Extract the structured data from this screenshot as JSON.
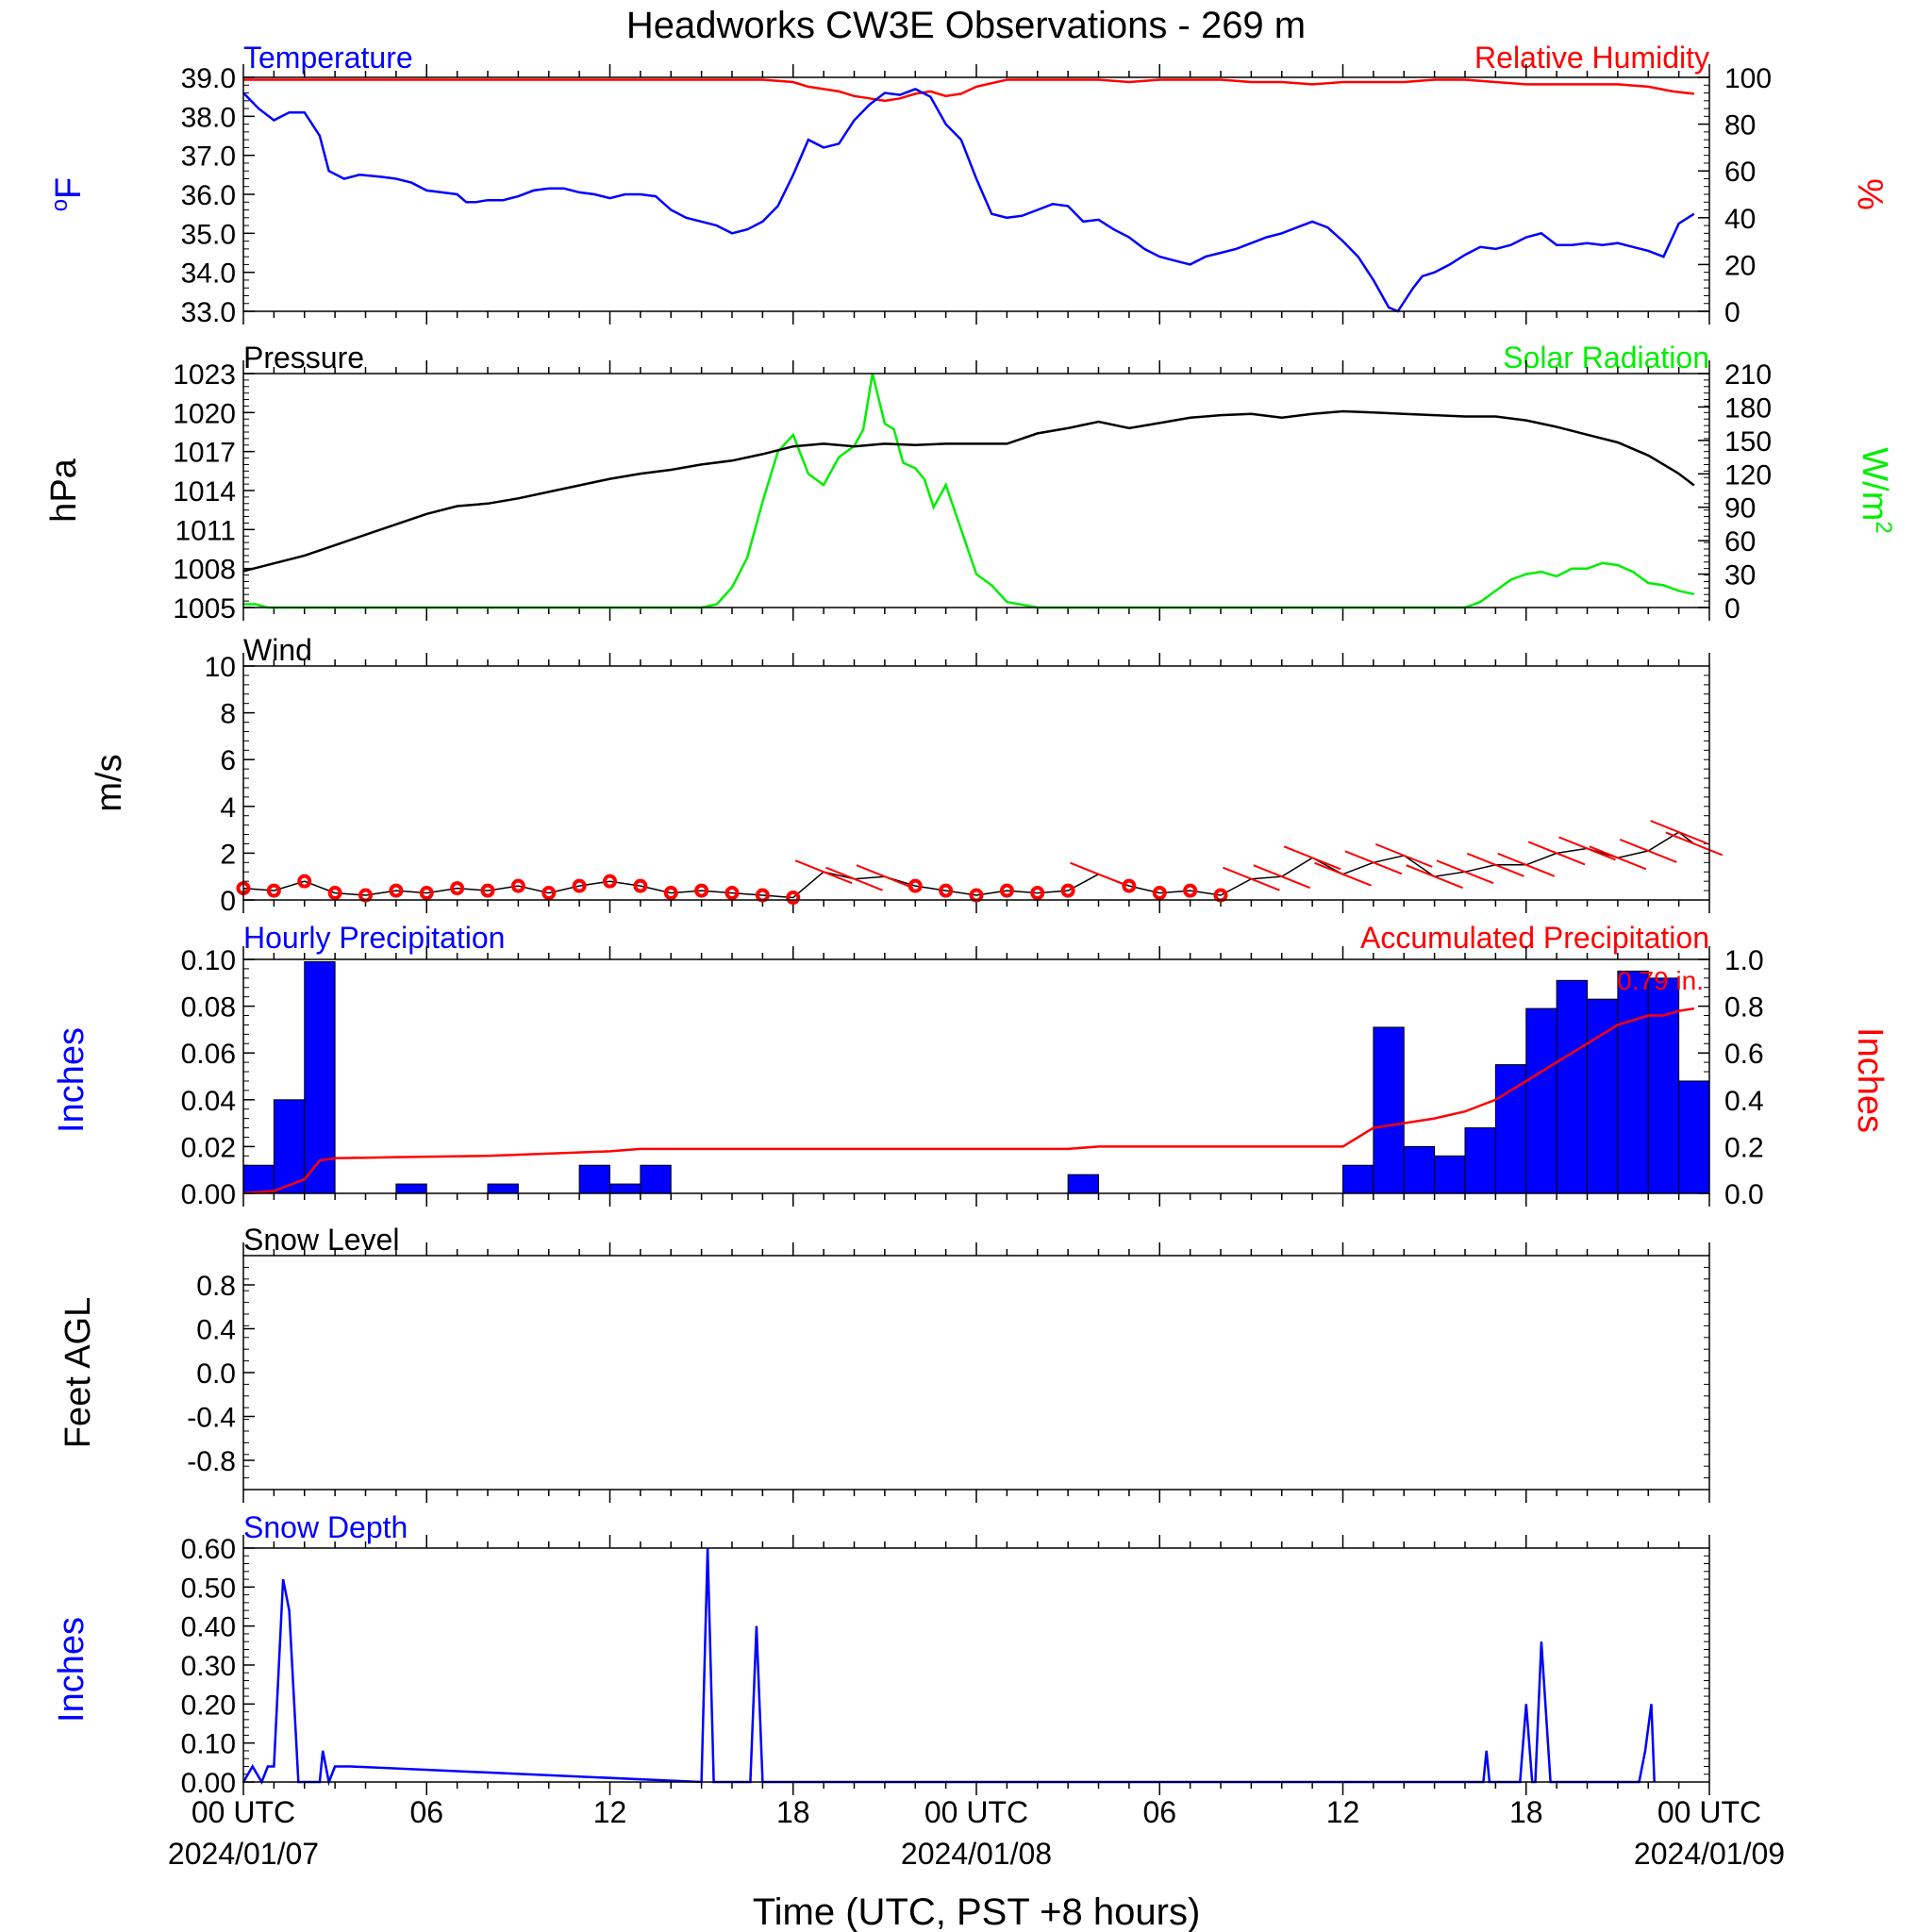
{
  "title": "Headworks CW3E Observations - 269 m",
  "xaxis": {
    "label": "Time (UTC, PST +8 hours)",
    "tick_hours": [
      0,
      6,
      12,
      18,
      24,
      30,
      36,
      42,
      48
    ],
    "tick_labels": [
      "00 UTC",
      "06",
      "12",
      "18",
      "00 UTC",
      "06",
      "12",
      "18",
      "00 UTC"
    ],
    "date_labels": [
      "2024/01/07",
      "2024/01/08",
      "2024/01/09"
    ],
    "range_hours": [
      0,
      48
    ]
  },
  "panels": {
    "temperature": {
      "title": "Temperature",
      "title_right": "Relative Humidity",
      "ylabel": "oF",
      "ylabel_right": "%",
      "yticks": [
        "33.0",
        "34.0",
        "35.0",
        "36.0",
        "37.0",
        "38.0",
        "39.0"
      ],
      "yticks_right": [
        "0",
        "20",
        "40",
        "60",
        "80",
        "100"
      ]
    },
    "pressure": {
      "title": "Pressure",
      "title_right": "Solar Radiation",
      "ylabel": "hPa",
      "ylabel_right": "W/m2",
      "yticks": [
        "1005",
        "1008",
        "1011",
        "1014",
        "1017",
        "1020",
        "1023"
      ],
      "yticks_right": [
        "0",
        "30",
        "60",
        "90",
        "120",
        "150",
        "180",
        "210"
      ]
    },
    "wind": {
      "title": "Wind",
      "ylabel": "m/s",
      "yticks": [
        "0",
        "2",
        "4",
        "6",
        "8",
        "10"
      ]
    },
    "precip": {
      "title": "Hourly Precipitation",
      "title_right": "Accumulated Precipitation",
      "ylabel": "Inches",
      "ylabel_right": "Inches",
      "yticks": [
        "0.00",
        "0.02",
        "0.04",
        "0.06",
        "0.08",
        "0.10"
      ],
      "yticks_right": [
        "0.0",
        "0.2",
        "0.4",
        "0.6",
        "0.8",
        "1.0"
      ],
      "annotation": "0.79 in."
    },
    "snow_level": {
      "title": "Snow Level",
      "ylabel": "Feet AGL",
      "yticks": [
        "-0.8",
        "-0.4",
        "0.0",
        "0.4",
        "0.8"
      ]
    },
    "snow_depth": {
      "title": "Snow Depth",
      "ylabel": "Inches",
      "yticks": [
        "0.00",
        "0.10",
        "0.20",
        "0.30",
        "0.40",
        "0.50",
        "0.60"
      ]
    }
  },
  "colors": {
    "temperature": "#0000ff",
    "humidity": "#ff0000",
    "pressure": "#000000",
    "solar": "#00ee00",
    "wind": "#000000",
    "wind_barb": "#ff0000",
    "hourly_precip": "#0000ff",
    "accum_precip": "#ff0000",
    "snow_depth": "#0000ff"
  },
  "chart_data": [
    {
      "type": "line",
      "panel": "temperature",
      "ylim": [
        33,
        39
      ],
      "x_units": "hours since 2024/01/07 00 UTC",
      "series": [
        {
          "name": "Temperature",
          "axis": "left",
          "x": [
            0,
            0.5,
            1,
            1.5,
            2,
            2.5,
            2.8,
            3.3,
            3.8,
            4.5,
            5,
            5.5,
            6,
            6.5,
            7,
            7.3,
            7.6,
            8,
            8.5,
            9,
            9.5,
            10,
            10.5,
            11,
            11.5,
            12,
            12.5,
            13,
            13.5,
            14,
            14.5,
            15,
            15.5,
            16,
            16.5,
            17,
            17.5,
            18,
            18.5,
            19,
            19.5,
            20,
            20.5,
            21,
            21.5,
            22,
            22.5,
            23,
            23.5,
            24,
            24.5,
            25,
            25.5,
            26,
            26.5,
            27,
            27.5,
            28,
            28.5,
            29,
            29.5,
            30,
            30.5,
            31,
            31.5,
            32,
            32.5,
            33,
            33.5,
            34,
            34.5,
            35,
            35.5,
            36,
            36.5,
            37,
            37.5,
            37.8,
            38.3,
            38.6,
            39,
            39.5,
            40,
            40.5,
            41,
            41.5,
            42,
            42.5,
            43,
            43.5,
            44,
            44.5,
            45,
            45.5,
            46,
            46.5,
            47,
            47.5
          ],
          "y": [
            38.6,
            38.2,
            37.9,
            38.1,
            38.1,
            37.5,
            36.6,
            36.4,
            36.5,
            36.45,
            36.4,
            36.3,
            36.1,
            36.05,
            36.0,
            35.8,
            35.8,
            35.85,
            35.85,
            35.95,
            36.1,
            36.15,
            36.15,
            36.05,
            36.0,
            35.9,
            36.0,
            36.0,
            35.95,
            35.6,
            35.4,
            35.3,
            35.2,
            35.0,
            35.1,
            35.3,
            35.7,
            36.5,
            37.4,
            37.2,
            37.3,
            37.9,
            38.3,
            38.6,
            38.55,
            38.7,
            38.5,
            37.8,
            37.4,
            36.4,
            35.5,
            35.4,
            35.45,
            35.6,
            35.75,
            35.7,
            35.3,
            35.35,
            35.1,
            34.9,
            34.6,
            34.4,
            34.3,
            34.2,
            34.4,
            34.5,
            34.6,
            34.75,
            34.9,
            35.0,
            35.15,
            35.3,
            35.15,
            34.8,
            34.4,
            33.8,
            33.1,
            33.0,
            33.6,
            33.9,
            34.0,
            34.2,
            34.45,
            34.65,
            34.6,
            34.7,
            34.9,
            35.0,
            34.7,
            34.7,
            34.75,
            34.7,
            34.75,
            34.65,
            34.55,
            34.4,
            35.25,
            35.5
          ],
          "color": "#0000ff"
        },
        {
          "name": "Relative Humidity",
          "axis": "right",
          "x": [
            0,
            1,
            2,
            3,
            4,
            5,
            6,
            7,
            8,
            9,
            10,
            11,
            12,
            13,
            14,
            15,
            16,
            17,
            18,
            18.5,
            19,
            19.5,
            20,
            20.5,
            21,
            21.5,
            22,
            22.5,
            23,
            23.5,
            24,
            25,
            26,
            27,
            28,
            29,
            30,
            31,
            32,
            33,
            34,
            35,
            36,
            37,
            38,
            39,
            40,
            41,
            42,
            43,
            44,
            45,
            46,
            46.8,
            47.5
          ],
          "y": [
            99,
            99,
            99,
            99,
            99,
            99,
            99,
            99,
            99,
            99,
            99,
            99,
            99,
            99,
            99,
            99,
            99,
            99,
            98,
            96,
            95,
            94,
            92,
            91,
            90,
            91,
            93,
            94,
            92,
            93,
            96,
            99,
            99,
            99,
            99,
            98,
            99,
            99,
            99,
            98,
            98,
            97,
            98,
            98,
            98,
            99,
            99,
            98,
            97,
            97,
            97,
            97,
            96,
            94,
            93
          ],
          "color": "#ff0000"
        }
      ]
    },
    {
      "type": "line",
      "panel": "pressure",
      "ylim": [
        1005,
        1023
      ],
      "ylim_right": [
        0,
        210
      ],
      "x_units": "hours since 2024/01/07 00 UTC",
      "series": [
        {
          "name": "Pressure",
          "axis": "left",
          "x": [
            0,
            1,
            2,
            3,
            4,
            5,
            6,
            7,
            8,
            9,
            10,
            11,
            12,
            13,
            14,
            15,
            16,
            17,
            18,
            19,
            20,
            21,
            22,
            23,
            24,
            25,
            26,
            27,
            28,
            29,
            30,
            31,
            32,
            33,
            34,
            35,
            36,
            37,
            38,
            39,
            40,
            41,
            42,
            43,
            44,
            45,
            46,
            47,
            47.5
          ],
          "y": [
            1007.8,
            1008.4,
            1009.0,
            1009.8,
            1010.6,
            1011.4,
            1012.2,
            1012.8,
            1013.0,
            1013.4,
            1013.9,
            1014.4,
            1014.9,
            1015.3,
            1015.6,
            1016.0,
            1016.3,
            1016.8,
            1017.4,
            1017.6,
            1017.4,
            1017.6,
            1017.5,
            1017.6,
            1017.6,
            1017.6,
            1018.4,
            1018.8,
            1019.3,
            1018.8,
            1019.2,
            1019.6,
            1019.8,
            1019.9,
            1019.6,
            1019.9,
            1020.1,
            1020.0,
            1019.9,
            1019.8,
            1019.7,
            1019.7,
            1019.4,
            1018.9,
            1018.3,
            1017.7,
            1016.7,
            1015.3,
            1014.4
          ],
          "color": "#000000"
        },
        {
          "name": "Solar Radiation",
          "axis": "right",
          "x": [
            0,
            0.4,
            0.8,
            15,
            15.5,
            16,
            16.5,
            17,
            17.5,
            18,
            18.5,
            19,
            19.5,
            20,
            20.3,
            20.6,
            21,
            21.3,
            21.6,
            22,
            22.3,
            22.6,
            23,
            23.5,
            24,
            24.5,
            25,
            26,
            40,
            40.5,
            41,
            41.5,
            42,
            42.5,
            43,
            43.5,
            44,
            44.5,
            45,
            45.5,
            46,
            46.5,
            47,
            47.5
          ],
          "y": [
            3,
            3,
            0,
            0,
            3,
            18,
            45,
            95,
            140,
            155,
            120,
            110,
            135,
            145,
            160,
            210,
            165,
            160,
            130,
            125,
            115,
            90,
            110,
            70,
            30,
            20,
            5,
            0,
            0,
            5,
            15,
            25,
            30,
            32,
            28,
            35,
            35,
            40,
            38,
            32,
            22,
            20,
            15,
            12
          ],
          "color": "#00ee00"
        }
      ]
    },
    {
      "type": "line",
      "panel": "wind",
      "ylim": [
        0,
        10
      ],
      "x_units": "hours since 2024/01/07 00 UTC",
      "series": [
        {
          "name": "Wind",
          "x": [
            0,
            1,
            2,
            3,
            4,
            5,
            6,
            7,
            8,
            9,
            10,
            11,
            12,
            13,
            14,
            15,
            16,
            17,
            18,
            19,
            20,
            21,
            22,
            23,
            24,
            25,
            26,
            27,
            28,
            29,
            30,
            31,
            32,
            33,
            34,
            35,
            36,
            37,
            38,
            39,
            40,
            41,
            42,
            43,
            44,
            45,
            46,
            47,
            47.5
          ],
          "y": [
            0.5,
            0.4,
            0.8,
            0.3,
            0.2,
            0.4,
            0.3,
            0.5,
            0.4,
            0.6,
            0.3,
            0.6,
            0.8,
            0.6,
            0.3,
            0.4,
            0.3,
            0.2,
            0.1,
            1.2,
            0.9,
            1.0,
            0.6,
            0.4,
            0.2,
            0.4,
            0.3,
            0.4,
            1.1,
            0.6,
            0.3,
            0.4,
            0.2,
            0.9,
            1.0,
            1.8,
            1.1,
            1.6,
            1.9,
            1.0,
            1.2,
            1.5,
            1.5,
            2.0,
            2.2,
            1.8,
            2.1,
            2.9,
            2.4
          ],
          "color": "#000000"
        }
      ]
    },
    {
      "type": "bar",
      "panel": "precip",
      "ylim": [
        0,
        0.1
      ],
      "ylim_right": [
        0,
        1.0
      ],
      "x_units": "hours since 2024/01/07 00 UTC",
      "hours": [
        0,
        1,
        2,
        5,
        8,
        11,
        12,
        13,
        27,
        36,
        37,
        38,
        39,
        40,
        41,
        42,
        43,
        44,
        45,
        46,
        47
      ],
      "values": [
        0.012,
        0.04,
        0.099,
        0.004,
        0.004,
        0.012,
        0.004,
        0.012,
        0.008,
        0.012,
        0.071,
        0.02,
        0.016,
        0.028,
        0.055,
        0.079,
        0.091,
        0.083,
        0.095,
        0.092,
        0.048
      ],
      "series": [
        {
          "name": "Accumulated Precipitation",
          "axis": "right",
          "x": [
            0,
            1,
            2,
            2.5,
            3,
            5,
            8,
            11,
            12,
            13,
            14,
            27,
            28,
            36,
            36.5,
            37,
            38,
            39,
            40,
            41,
            42,
            43,
            44,
            45,
            46,
            46.5,
            47,
            47.5
          ],
          "y": [
            0,
            0.01,
            0.06,
            0.14,
            0.15,
            0.155,
            0.16,
            0.175,
            0.18,
            0.19,
            0.19,
            0.19,
            0.2,
            0.2,
            0.24,
            0.28,
            0.3,
            0.32,
            0.35,
            0.4,
            0.48,
            0.56,
            0.64,
            0.72,
            0.76,
            0.76,
            0.78,
            0.79
          ],
          "color": "#ff0000"
        }
      ]
    },
    {
      "type": "line",
      "panel": "snow_level",
      "ylim": [
        -1,
        1
      ],
      "series": []
    },
    {
      "type": "line",
      "panel": "snow_depth",
      "ylim": [
        0,
        0.6
      ],
      "x_units": "hours since 2024/01/07 00 UTC",
      "series": [
        {
          "name": "Snow Depth",
          "x": [
            0,
            0.3,
            0.6,
            0.8,
            1,
            1.3,
            1.5,
            1.8,
            2.2,
            2.5,
            2.6,
            2.8,
            3,
            3.2,
            3.5,
            15,
            15.2,
            15.4,
            16.6,
            16.8,
            17,
            40.6,
            40.7,
            40.8,
            41.8,
            42,
            42.2,
            42.3,
            42.5,
            42.8,
            45.7,
            45.9,
            46.1,
            46.2
          ],
          "y": [
            0,
            0.04,
            0,
            0.04,
            0.04,
            0.52,
            0.44,
            0,
            0,
            0,
            0.08,
            0,
            0.04,
            0.04,
            0.04,
            0,
            0.6,
            0,
            0,
            0.4,
            0,
            0,
            0.08,
            0,
            0,
            0.2,
            0,
            0,
            0.36,
            0,
            0,
            0.08,
            0.2,
            0
          ],
          "color": "#0000ff"
        }
      ]
    }
  ]
}
